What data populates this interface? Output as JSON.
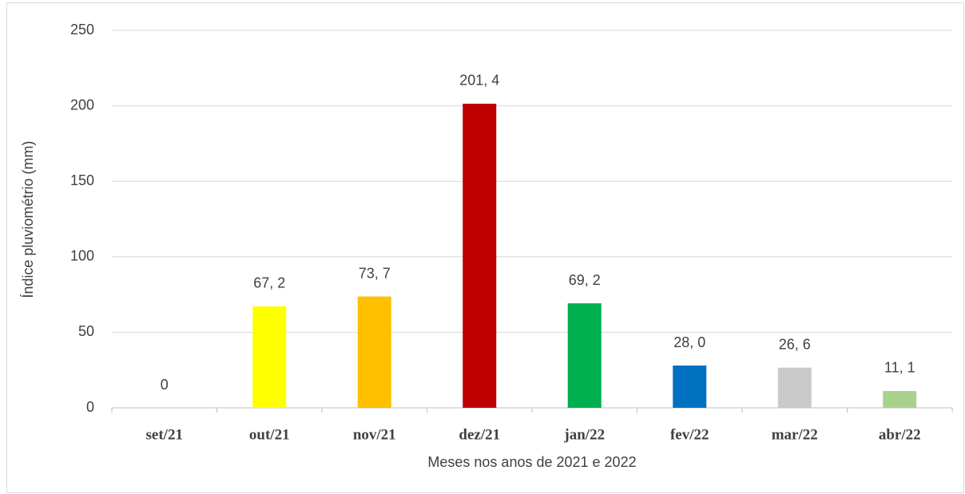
{
  "chart_data": {
    "type": "bar",
    "categories": [
      "set/21",
      "out/21",
      "nov/21",
      "dez/21",
      "jan/22",
      "fev/22",
      "mar/22",
      "abr/22"
    ],
    "values": [
      0,
      67.2,
      73.7,
      201.4,
      69.2,
      28.0,
      26.6,
      11.1
    ],
    "value_labels": [
      "0",
      "67, 2",
      "73, 7",
      "201, 4",
      "69, 2",
      "28, 0",
      "26, 6",
      "11, 1"
    ],
    "colors": [
      "#5b9bd5",
      "#ffff00",
      "#ffc000",
      "#c00000",
      "#00b050",
      "#0070c0",
      "#c9c9c9",
      "#a9d18e"
    ],
    "ylim": [
      0,
      250
    ],
    "yticks": [
      0,
      50,
      100,
      150,
      200,
      250
    ],
    "grid": true,
    "x_label": "Meses nos anos de 2021 e 2022",
    "y_label": "Índice pluviométrio (mm)"
  }
}
